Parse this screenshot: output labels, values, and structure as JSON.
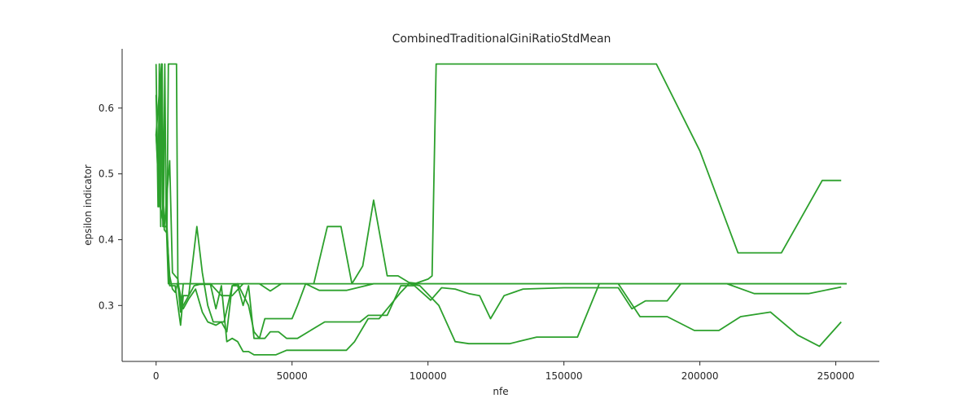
{
  "chart_data": {
    "type": "line",
    "title": "CombinedTraditionalGiniRatioStdMean",
    "xlabel": "nfe",
    "ylabel": "epsilon indicator",
    "xlim": [
      -12500,
      266000
    ],
    "ylim": [
      0.215,
      0.69
    ],
    "xticks": [
      0,
      50000,
      100000,
      150000,
      200000,
      250000
    ],
    "xtick_labels": [
      "0",
      "50000",
      "100000",
      "150000",
      "200000",
      "250000"
    ],
    "yticks": [
      0.3,
      0.4,
      0.5,
      0.6
    ],
    "ytick_labels": [
      "0.3",
      "0.4",
      "0.5",
      "0.6"
    ],
    "grid": false,
    "line_color": "#2ca02c",
    "series": [
      {
        "values": [
          [
            0,
            0.667
          ],
          [
            700,
            0.45
          ],
          [
            1200,
            0.667
          ],
          [
            1700,
            0.42
          ],
          [
            2200,
            0.667
          ],
          [
            2700,
            0.44
          ],
          [
            3200,
            0.667
          ],
          [
            3700,
            0.43
          ],
          [
            4500,
            0.333
          ],
          [
            6000,
            0.333
          ],
          [
            8000,
            0.333
          ],
          [
            10000,
            0.333
          ],
          [
            20000,
            0.333
          ],
          [
            40000,
            0.333
          ],
          [
            60000,
            0.333
          ],
          [
            80000,
            0.333
          ],
          [
            95000,
            0.333
          ],
          [
            100000,
            0.34
          ],
          [
            101500,
            0.345
          ],
          [
            103000,
            0.667
          ],
          [
            130000,
            0.667
          ],
          [
            150000,
            0.667
          ],
          [
            184000,
            0.667
          ],
          [
            200000,
            0.535
          ],
          [
            214000,
            0.38
          ],
          [
            230000,
            0.38
          ],
          [
            245000,
            0.49
          ],
          [
            252000,
            0.49
          ]
        ]
      },
      {
        "values": [
          [
            0,
            0.62
          ],
          [
            1000,
            0.45
          ],
          [
            2000,
            0.667
          ],
          [
            2500,
            0.47
          ],
          [
            3000,
            0.415
          ],
          [
            4000,
            0.41
          ],
          [
            5000,
            0.345
          ],
          [
            6000,
            0.325
          ],
          [
            7000,
            0.32
          ],
          [
            8000,
            0.335
          ],
          [
            9000,
            0.315
          ],
          [
            10000,
            0.295
          ],
          [
            12000,
            0.31
          ],
          [
            14500,
            0.325
          ],
          [
            17000,
            0.29
          ],
          [
            19000,
            0.275
          ],
          [
            22000,
            0.27
          ],
          [
            24000,
            0.275
          ],
          [
            26000,
            0.26
          ],
          [
            28000,
            0.33
          ],
          [
            30000,
            0.33
          ],
          [
            32000,
            0.3
          ],
          [
            34000,
            0.33
          ],
          [
            36000,
            0.25
          ],
          [
            38000,
            0.25
          ],
          [
            40000,
            0.25
          ],
          [
            42000,
            0.26
          ],
          [
            45000,
            0.26
          ],
          [
            48000,
            0.25
          ],
          [
            52000,
            0.25
          ],
          [
            56000,
            0.26
          ],
          [
            62000,
            0.275
          ],
          [
            70000,
            0.275
          ],
          [
            75000,
            0.275
          ],
          [
            78000,
            0.285
          ],
          [
            85000,
            0.285
          ],
          [
            90000,
            0.33
          ],
          [
            95000,
            0.33
          ],
          [
            101000,
            0.308
          ],
          [
            105000,
            0.327
          ],
          [
            110000,
            0.325
          ],
          [
            115000,
            0.318
          ],
          [
            119000,
            0.315
          ],
          [
            123000,
            0.28
          ],
          [
            128000,
            0.315
          ],
          [
            135000,
            0.325
          ],
          [
            150000,
            0.327
          ],
          [
            160000,
            0.327
          ],
          [
            170000,
            0.327
          ],
          [
            175000,
            0.295
          ],
          [
            180000,
            0.307
          ],
          [
            188000,
            0.307
          ],
          [
            193000,
            0.333
          ],
          [
            205000,
            0.333
          ],
          [
            210000,
            0.333
          ],
          [
            220000,
            0.318
          ],
          [
            240000,
            0.318
          ],
          [
            252000,
            0.328
          ]
        ]
      },
      {
        "values": [
          [
            0,
            0.56
          ],
          [
            1000,
            0.47
          ],
          [
            2000,
            0.44
          ],
          [
            3000,
            0.42
          ],
          [
            4000,
            0.42
          ],
          [
            5000,
            0.33
          ],
          [
            6000,
            0.33
          ],
          [
            7000,
            0.33
          ],
          [
            8000,
            0.3
          ],
          [
            9000,
            0.27
          ],
          [
            10000,
            0.315
          ],
          [
            12000,
            0.315
          ],
          [
            14000,
            0.33
          ],
          [
            16000,
            0.332
          ],
          [
            18000,
            0.332
          ],
          [
            20000,
            0.332
          ],
          [
            22000,
            0.295
          ],
          [
            24000,
            0.33
          ],
          [
            26000,
            0.245
          ],
          [
            28000,
            0.25
          ],
          [
            30000,
            0.245
          ],
          [
            32000,
            0.23
          ],
          [
            34000,
            0.23
          ],
          [
            36000,
            0.225
          ],
          [
            40000,
            0.225
          ],
          [
            44000,
            0.225
          ],
          [
            48000,
            0.232
          ],
          [
            60000,
            0.232
          ],
          [
            65000,
            0.232
          ],
          [
            70000,
            0.232
          ],
          [
            73000,
            0.245
          ],
          [
            78000,
            0.28
          ],
          [
            82000,
            0.28
          ],
          [
            90000,
            0.32
          ],
          [
            93000,
            0.333
          ],
          [
            97000,
            0.33
          ],
          [
            104000,
            0.3
          ],
          [
            110000,
            0.245
          ],
          [
            115000,
            0.242
          ],
          [
            130000,
            0.242
          ],
          [
            140000,
            0.252
          ],
          [
            155000,
            0.252
          ],
          [
            163000,
            0.333
          ],
          [
            170000,
            0.333
          ],
          [
            178000,
            0.283
          ],
          [
            188000,
            0.283
          ],
          [
            198000,
            0.262
          ],
          [
            207000,
            0.262
          ],
          [
            215000,
            0.283
          ],
          [
            226000,
            0.29
          ],
          [
            236000,
            0.255
          ],
          [
            244000,
            0.238
          ],
          [
            252000,
            0.275
          ]
        ]
      },
      {
        "values": [
          [
            0,
            0.56
          ],
          [
            1500,
            0.45
          ],
          [
            3000,
            0.42
          ],
          [
            5000,
            0.52
          ],
          [
            6000,
            0.35
          ],
          [
            8000,
            0.34
          ],
          [
            9000,
            0.3
          ],
          [
            10000,
            0.3
          ],
          [
            12000,
            0.315
          ],
          [
            15000,
            0.42
          ],
          [
            17000,
            0.35
          ],
          [
            19000,
            0.3
          ],
          [
            21000,
            0.275
          ],
          [
            25000,
            0.275
          ],
          [
            28000,
            0.33
          ],
          [
            30000,
            0.333
          ],
          [
            34000,
            0.3
          ],
          [
            36000,
            0.26
          ],
          [
            38000,
            0.25
          ],
          [
            40000,
            0.28
          ],
          [
            46000,
            0.28
          ],
          [
            50000,
            0.28
          ],
          [
            52000,
            0.3
          ],
          [
            55000,
            0.333
          ],
          [
            58000,
            0.333
          ],
          [
            63000,
            0.42
          ],
          [
            68000,
            0.42
          ],
          [
            72000,
            0.333
          ],
          [
            76000,
            0.36
          ],
          [
            80000,
            0.46
          ],
          [
            85000,
            0.345
          ],
          [
            89000,
            0.345
          ],
          [
            93000,
            0.335
          ],
          [
            97000,
            0.333
          ],
          [
            120000,
            0.333
          ],
          [
            160000,
            0.333
          ],
          [
            200000,
            0.333
          ],
          [
            254000,
            0.333
          ]
        ]
      },
      {
        "values": [
          [
            0,
            0.56
          ],
          [
            2000,
            0.667
          ],
          [
            2500,
            0.42
          ],
          [
            4000,
            0.42
          ],
          [
            4500,
            0.667
          ],
          [
            5000,
            0.667
          ],
          [
            7500,
            0.667
          ],
          [
            8000,
            0.333
          ],
          [
            9000,
            0.29
          ],
          [
            10000,
            0.333
          ],
          [
            14000,
            0.333
          ],
          [
            18000,
            0.333
          ],
          [
            20000,
            0.333
          ],
          [
            24000,
            0.315
          ],
          [
            28000,
            0.315
          ],
          [
            32000,
            0.333
          ],
          [
            38000,
            0.333
          ],
          [
            42000,
            0.322
          ],
          [
            46000,
            0.333
          ],
          [
            50000,
            0.333
          ],
          [
            55000,
            0.333
          ],
          [
            60000,
            0.323
          ],
          [
            70000,
            0.323
          ],
          [
            80000,
            0.333
          ],
          [
            90000,
            0.333
          ],
          [
            120000,
            0.333
          ],
          [
            200000,
            0.333
          ],
          [
            254000,
            0.333
          ]
        ]
      }
    ]
  }
}
